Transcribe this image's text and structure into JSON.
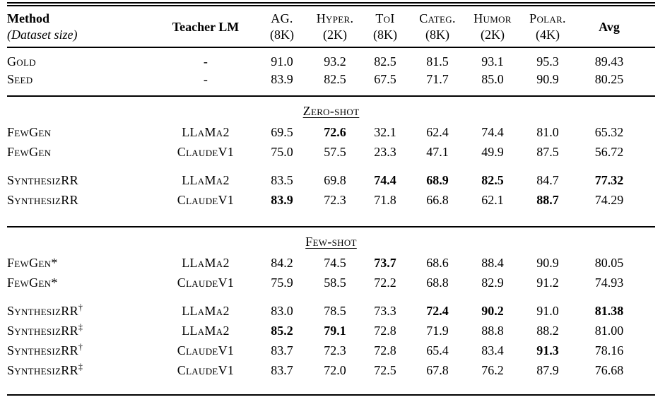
{
  "page": {
    "background_color": "#ffffff",
    "text_color": "#000000",
    "rule_color": "#000000"
  },
  "table": {
    "header": {
      "method_label": "Method",
      "method_sublabel": "(Dataset size)",
      "teacher_label": "Teacher LM",
      "columns": [
        {
          "label": "AG.",
          "size": "(8K)",
          "bold": false
        },
        {
          "label": "Hyper.",
          "size": "(2K)",
          "bold": false
        },
        {
          "label": "ToI",
          "size": "(8K)",
          "bold": false
        },
        {
          "label": "Categ.",
          "size": "(8K)",
          "bold": false
        },
        {
          "label": "Humor",
          "size": "(2K)",
          "bold": false
        },
        {
          "label": "Polar.",
          "size": "(4K)",
          "bold": false
        },
        {
          "label": "Avg",
          "size": "",
          "bold": true
        }
      ]
    },
    "sections": [
      {
        "title": "",
        "groups": [
          {
            "rows": [
              {
                "method": "Gold",
                "sup": "",
                "teacher": "-",
                "values": [
                  "91.0",
                  "93.2",
                  "82.5",
                  "81.5",
                  "93.1",
                  "95.3",
                  "89.43"
                ],
                "bold": [
                  0,
                  0,
                  0,
                  0,
                  0,
                  0,
                  0
                ]
              },
              {
                "method": "Seed",
                "sup": "",
                "teacher": "-",
                "values": [
                  "83.9",
                  "82.5",
                  "67.5",
                  "71.7",
                  "85.0",
                  "90.9",
                  "80.25"
                ],
                "bold": [
                  0,
                  0,
                  0,
                  0,
                  0,
                  0,
                  0
                ]
              }
            ]
          }
        ]
      },
      {
        "title": "Zero-shot",
        "groups": [
          {
            "rows": [
              {
                "method": "FewGen",
                "sup": "",
                "teacher": "LLaMa2",
                "values": [
                  "69.5",
                  "72.6",
                  "32.1",
                  "62.4",
                  "74.4",
                  "81.0",
                  "65.32"
                ],
                "bold": [
                  0,
                  1,
                  0,
                  0,
                  0,
                  0,
                  0
                ]
              },
              {
                "method": "FewGen",
                "sup": "",
                "teacher": "ClaudeV1",
                "values": [
                  "75.0",
                  "57.5",
                  "23.3",
                  "47.1",
                  "49.9",
                  "87.5",
                  "56.72"
                ],
                "bold": [
                  0,
                  0,
                  0,
                  0,
                  0,
                  0,
                  0
                ]
              }
            ]
          },
          {
            "rows": [
              {
                "method": "SynthesizRR",
                "sup": "",
                "teacher": "LLaMa2",
                "values": [
                  "83.5",
                  "69.8",
                  "74.4",
                  "68.9",
                  "82.5",
                  "84.7",
                  "77.32"
                ],
                "bold": [
                  0,
                  0,
                  1,
                  1,
                  1,
                  0,
                  1
                ]
              },
              {
                "method": "SynthesizRR",
                "sup": "",
                "teacher": "ClaudeV1",
                "values": [
                  "83.9",
                  "72.3",
                  "71.8",
                  "66.8",
                  "62.1",
                  "88.7",
                  "74.29"
                ],
                "bold": [
                  1,
                  0,
                  0,
                  0,
                  0,
                  1,
                  0
                ]
              }
            ]
          }
        ]
      },
      {
        "title": "Few-shot",
        "groups": [
          {
            "rows": [
              {
                "method": "FewGen*",
                "sup": "",
                "teacher": "LLaMa2",
                "values": [
                  "84.2",
                  "74.5",
                  "73.7",
                  "68.6",
                  "88.4",
                  "90.9",
                  "80.05"
                ],
                "bold": [
                  0,
                  0,
                  1,
                  0,
                  0,
                  0,
                  0
                ]
              },
              {
                "method": "FewGen*",
                "sup": "",
                "teacher": "ClaudeV1",
                "values": [
                  "75.9",
                  "58.5",
                  "72.2",
                  "68.8",
                  "82.9",
                  "91.2",
                  "74.93"
                ],
                "bold": [
                  0,
                  0,
                  0,
                  0,
                  0,
                  0,
                  0
                ]
              }
            ]
          },
          {
            "rows": [
              {
                "method": "SynthesizRR",
                "sup": "†",
                "teacher": "LLaMa2",
                "values": [
                  "83.0",
                  "78.5",
                  "73.3",
                  "72.4",
                  "90.2",
                  "91.0",
                  "81.38"
                ],
                "bold": [
                  0,
                  0,
                  0,
                  1,
                  1,
                  0,
                  1
                ]
              },
              {
                "method": "SynthesizRR",
                "sup": "‡",
                "teacher": "LLaMa2",
                "values": [
                  "85.2",
                  "79.1",
                  "72.8",
                  "71.9",
                  "88.8",
                  "88.2",
                  "81.00"
                ],
                "bold": [
                  1,
                  1,
                  0,
                  0,
                  0,
                  0,
                  0
                ]
              },
              {
                "method": "SynthesizRR",
                "sup": "†",
                "teacher": "ClaudeV1",
                "values": [
                  "83.7",
                  "72.3",
                  "72.8",
                  "65.4",
                  "83.4",
                  "91.3",
                  "78.16"
                ],
                "bold": [
                  0,
                  0,
                  0,
                  0,
                  0,
                  1,
                  0
                ]
              },
              {
                "method": "SynthesizRR",
                "sup": "‡",
                "teacher": "ClaudeV1",
                "values": [
                  "83.7",
                  "72.0",
                  "72.5",
                  "67.8",
                  "76.2",
                  "87.9",
                  "76.68"
                ],
                "bold": [
                  0,
                  0,
                  0,
                  0,
                  0,
                  0,
                  0
                ]
              }
            ]
          }
        ]
      }
    ]
  }
}
